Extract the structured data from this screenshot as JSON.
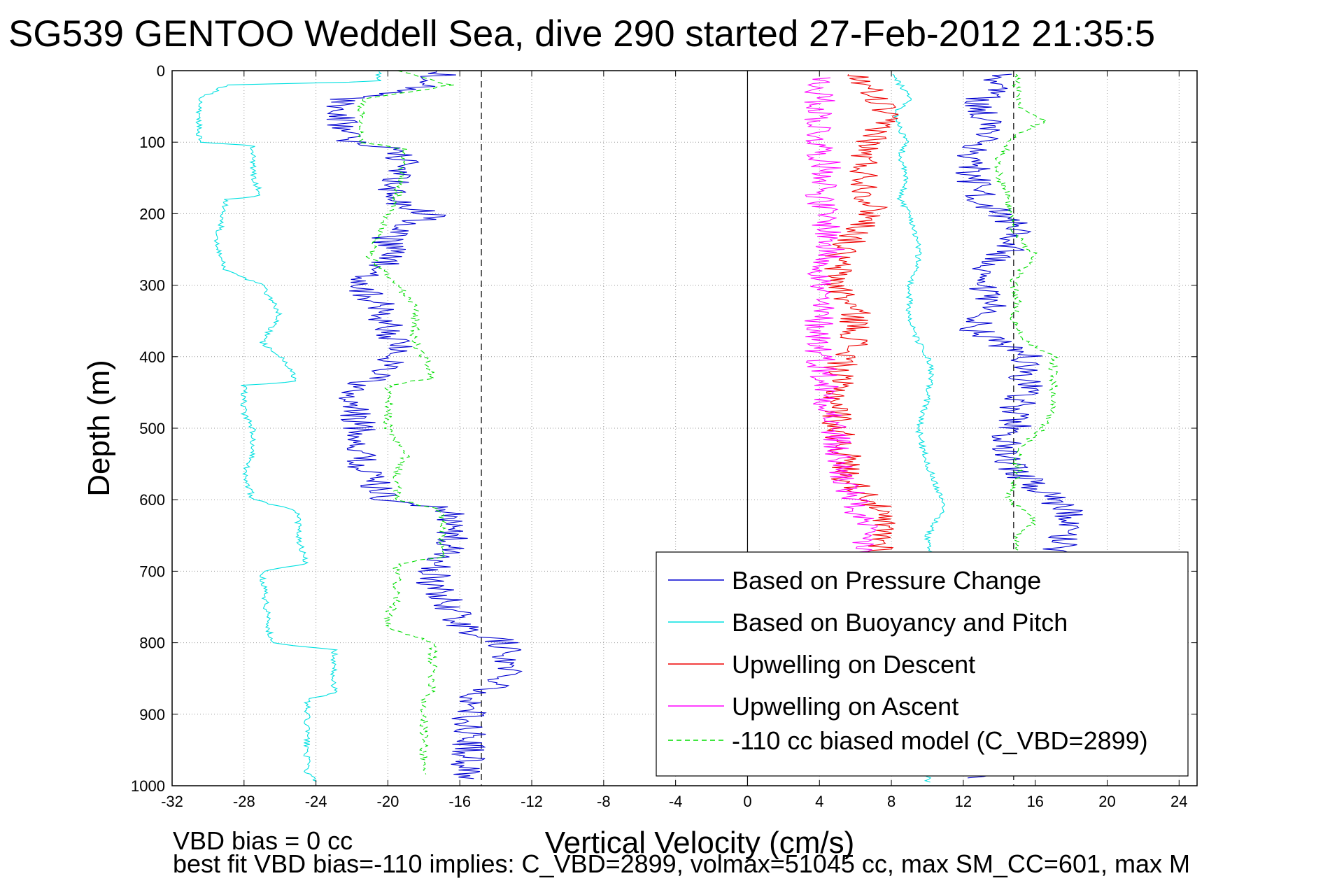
{
  "figure": {
    "title": "SG539 GENTOO Weddell Sea, dive 290 started 27-Feb-2012 21:35:5",
    "footer_line1": "VBD bias = 0 cc",
    "footer_line2": "best fit VBD bias=-110 implies: C_VBD=2899, volmax=51045 cc, max SM_CC=601, max M"
  },
  "chart_data": {
    "type": "line",
    "xlabel": "Vertical Velocity (cm/s)",
    "ylabel": "Depth (m)",
    "xlim": [
      -32,
      25
    ],
    "ylim": [
      1000,
      0
    ],
    "y_reversed": true,
    "grid": true,
    "legend_position": "bottom-right",
    "x_ticks": [
      "-32",
      "-28",
      "-24",
      "-20",
      "-16",
      "-12",
      "-8",
      "-4",
      "0",
      "4",
      "8",
      "12",
      "16",
      "20",
      "24"
    ],
    "y_ticks": [
      "0",
      "100",
      "200",
      "300",
      "400",
      "500",
      "600",
      "700",
      "800",
      "900",
      "1000"
    ],
    "reference_lines": [
      {
        "x": -14.8,
        "style": "dashed"
      },
      {
        "x": 0,
        "style": "solid"
      },
      {
        "x": 14.8,
        "style": "dashed"
      }
    ],
    "series": [
      {
        "name": "Based on Pressure Change",
        "color": "#0000d0",
        "dash": "",
        "descent": [
          [
            0,
            -17
          ],
          [
            20,
            -17.5
          ],
          [
            40,
            -22.8
          ],
          [
            60,
            -22.5
          ],
          [
            80,
            -22.5
          ],
          [
            100,
            -22
          ],
          [
            110,
            -19
          ],
          [
            150,
            -19.5
          ],
          [
            180,
            -20
          ],
          [
            200,
            -17.5
          ],
          [
            230,
            -20
          ],
          [
            260,
            -20
          ],
          [
            300,
            -21.5
          ],
          [
            330,
            -20.5
          ],
          [
            360,
            -20
          ],
          [
            390,
            -19.5
          ],
          [
            420,
            -20
          ],
          [
            450,
            -22.5
          ],
          [
            500,
            -21.5
          ],
          [
            550,
            -21.5
          ],
          [
            600,
            -20
          ],
          [
            615,
            -16.5
          ],
          [
            650,
            -16.5
          ],
          [
            680,
            -16.8
          ],
          [
            690,
            -17.5
          ],
          [
            720,
            -17.5
          ],
          [
            750,
            -16.5
          ],
          [
            780,
            -15.8
          ],
          [
            800,
            -13.5
          ],
          [
            830,
            -13.3
          ],
          [
            860,
            -13.5
          ],
          [
            875,
            -15.5
          ],
          [
            900,
            -15.5
          ],
          [
            950,
            -15.5
          ],
          [
            990,
            -15.5
          ]
        ],
        "ascent": [
          [
            990,
            13
          ],
          [
            960,
            15.5
          ],
          [
            930,
            15.8
          ],
          [
            900,
            15.8
          ],
          [
            870,
            16.2
          ],
          [
            840,
            16
          ],
          [
            800,
            16
          ],
          [
            760,
            16
          ],
          [
            720,
            16.2
          ],
          [
            690,
            16.5
          ],
          [
            660,
            17.5
          ],
          [
            640,
            17.5
          ],
          [
            620,
            18
          ],
          [
            600,
            17
          ],
          [
            580,
            16
          ],
          [
            560,
            14.8
          ],
          [
            530,
            14
          ],
          [
            500,
            14.8
          ],
          [
            470,
            15
          ],
          [
            440,
            15.5
          ],
          [
            420,
            15.5
          ],
          [
            400,
            15.5
          ],
          [
            380,
            14
          ],
          [
            360,
            12.5
          ],
          [
            330,
            13.5
          ],
          [
            300,
            12.8
          ],
          [
            280,
            12.5
          ],
          [
            250,
            14.5
          ],
          [
            230,
            15
          ],
          [
            210,
            14.5
          ],
          [
            180,
            13
          ],
          [
            150,
            12.5
          ],
          [
            120,
            12.5
          ],
          [
            100,
            13
          ],
          [
            80,
            13.5
          ],
          [
            60,
            13
          ],
          [
            40,
            13
          ],
          [
            20,
            14
          ],
          [
            5,
            14
          ]
        ]
      },
      {
        "name": "Based on Buoyancy and Pitch",
        "color": "#00e0e0",
        "dash": "",
        "descent": [
          [
            0,
            -20.5
          ],
          [
            15,
            -20.5
          ],
          [
            20,
            -29
          ],
          [
            40,
            -30.5
          ],
          [
            100,
            -30.5
          ],
          [
            105,
            -27.5
          ],
          [
            150,
            -27.5
          ],
          [
            175,
            -27
          ],
          [
            180,
            -29
          ],
          [
            240,
            -29.5
          ],
          [
            280,
            -29
          ],
          [
            300,
            -27
          ],
          [
            340,
            -26
          ],
          [
            380,
            -27
          ],
          [
            400,
            -26
          ],
          [
            435,
            -25
          ],
          [
            440,
            -28
          ],
          [
            480,
            -28
          ],
          [
            500,
            -27.5
          ],
          [
            540,
            -27.5
          ],
          [
            560,
            -28
          ],
          [
            600,
            -27.5
          ],
          [
            615,
            -25
          ],
          [
            650,
            -25
          ],
          [
            690,
            -24.5
          ],
          [
            700,
            -27
          ],
          [
            800,
            -26.5
          ],
          [
            810,
            -23
          ],
          [
            870,
            -23
          ],
          [
            880,
            -24.5
          ],
          [
            950,
            -24.5
          ],
          [
            980,
            -24.5
          ],
          [
            995,
            -24
          ]
        ],
        "ascent": [
          [
            995,
            10
          ],
          [
            960,
            10
          ],
          [
            930,
            10
          ],
          [
            900,
            10
          ],
          [
            860,
            10
          ],
          [
            820,
            10
          ],
          [
            790,
            10
          ],
          [
            760,
            10
          ],
          [
            720,
            10
          ],
          [
            690,
            10.2
          ],
          [
            650,
            10
          ],
          [
            630,
            10.5
          ],
          [
            610,
            11
          ],
          [
            580,
            10.5
          ],
          [
            550,
            10
          ],
          [
            500,
            9.5
          ],
          [
            460,
            10
          ],
          [
            420,
            10.2
          ],
          [
            400,
            10
          ],
          [
            380,
            9.5
          ],
          [
            350,
            9
          ],
          [
            330,
            9
          ],
          [
            300,
            9
          ],
          [
            270,
            9.5
          ],
          [
            240,
            9.5
          ],
          [
            200,
            9
          ],
          [
            180,
            8.5
          ],
          [
            150,
            8.8
          ],
          [
            120,
            8.5
          ],
          [
            100,
            8.8
          ],
          [
            80,
            8.5
          ],
          [
            60,
            8.2
          ],
          [
            40,
            9
          ],
          [
            20,
            8.5
          ],
          [
            5,
            8
          ]
        ]
      },
      {
        "name": "Upwelling on Descent",
        "color": "#ee0000",
        "dash": "",
        "descent": [
          [
            5,
            6
          ],
          [
            20,
            6.5
          ],
          [
            50,
            7.5
          ],
          [
            80,
            7.5
          ],
          [
            110,
            6.5
          ],
          [
            150,
            6.5
          ],
          [
            200,
            7
          ],
          [
            230,
            6
          ],
          [
            260,
            5
          ],
          [
            300,
            5
          ],
          [
            340,
            6
          ],
          [
            380,
            6
          ],
          [
            420,
            5
          ],
          [
            460,
            5
          ],
          [
            500,
            5
          ],
          [
            540,
            5.5
          ],
          [
            570,
            5.5
          ],
          [
            600,
            7
          ],
          [
            640,
            7.5
          ],
          [
            680,
            7.5
          ]
        ],
        "ascent": []
      },
      {
        "name": "Upwelling on Ascent",
        "color": "#ff00ff",
        "dash": "",
        "descent": [],
        "ascent": [
          [
            690,
            6.5
          ],
          [
            650,
            6.5
          ],
          [
            610,
            6
          ],
          [
            580,
            5.5
          ],
          [
            540,
            5
          ],
          [
            500,
            4.8
          ],
          [
            460,
            4.5
          ],
          [
            420,
            4.2
          ],
          [
            380,
            4
          ],
          [
            340,
            4
          ],
          [
            300,
            4
          ],
          [
            260,
            4.5
          ],
          [
            220,
            4.5
          ],
          [
            180,
            4
          ],
          [
            150,
            4.5
          ],
          [
            100,
            4
          ],
          [
            60,
            4
          ],
          [
            30,
            4
          ],
          [
            10,
            4
          ]
        ]
      },
      {
        "name": "-110 cc biased model (C_VBD=2899)",
        "color": "#00dd00",
        "dash": "7,5",
        "descent": [
          [
            0,
            -19.5
          ],
          [
            20,
            -16.5
          ],
          [
            40,
            -21.5
          ],
          [
            100,
            -21.5
          ],
          [
            110,
            -19
          ],
          [
            180,
            -19.5
          ],
          [
            200,
            -20
          ],
          [
            230,
            -20.5
          ],
          [
            260,
            -21
          ],
          [
            300,
            -19.5
          ],
          [
            330,
            -18.5
          ],
          [
            380,
            -18.5
          ],
          [
            400,
            -18
          ],
          [
            430,
            -17.5
          ],
          [
            440,
            -20
          ],
          [
            500,
            -20
          ],
          [
            540,
            -19
          ],
          [
            560,
            -19.5
          ],
          [
            600,
            -19.5
          ],
          [
            615,
            -17
          ],
          [
            680,
            -17
          ],
          [
            690,
            -19.5
          ],
          [
            740,
            -19.5
          ],
          [
            760,
            -20
          ],
          [
            780,
            -20
          ],
          [
            800,
            -17.5
          ],
          [
            870,
            -17.5
          ],
          [
            880,
            -18
          ],
          [
            950,
            -18
          ],
          [
            985,
            -18
          ]
        ],
        "ascent": [
          [
            985,
            14.8
          ],
          [
            940,
            15
          ],
          [
            900,
            15
          ],
          [
            860,
            15
          ],
          [
            820,
            15
          ],
          [
            780,
            15
          ],
          [
            740,
            15
          ],
          [
            700,
            15
          ],
          [
            670,
            15
          ],
          [
            650,
            15
          ],
          [
            630,
            16
          ],
          [
            600,
            14.5
          ],
          [
            560,
            15
          ],
          [
            530,
            15
          ],
          [
            500,
            16.5
          ],
          [
            470,
            17
          ],
          [
            420,
            17
          ],
          [
            400,
            17
          ],
          [
            380,
            15.5
          ],
          [
            350,
            14.8
          ],
          [
            320,
            15
          ],
          [
            290,
            14.8
          ],
          [
            260,
            16
          ],
          [
            230,
            15
          ],
          [
            200,
            14.5
          ],
          [
            170,
            14.5
          ],
          [
            150,
            14
          ],
          [
            120,
            14
          ],
          [
            90,
            15
          ],
          [
            70,
            16.5
          ],
          [
            50,
            15
          ],
          [
            20,
            15
          ],
          [
            5,
            15
          ]
        ]
      }
    ]
  }
}
